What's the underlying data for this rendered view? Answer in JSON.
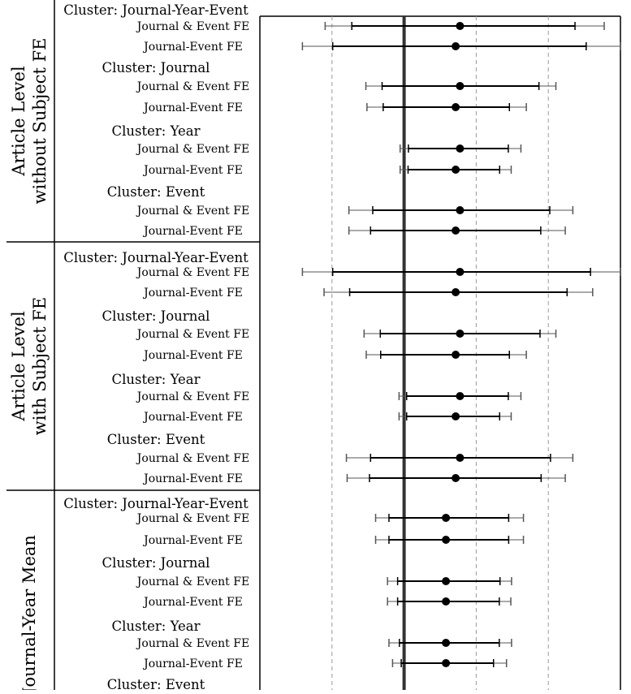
{
  "chart_data": {
    "type": "forest",
    "x_axis": {
      "min": 0.0,
      "max": 1.0,
      "zero_line": 0.4,
      "dashed_gridlines": [
        0.2,
        0.6,
        0.8
      ]
    },
    "ci_levels": [
      "95%",
      "90%"
    ],
    "panels": [
      {
        "group_label_lines": [
          "Article Level",
          "without Subject FE"
        ],
        "clusters": [
          {
            "label": "Cluster: Journal-Year-Event",
            "rows": [
              {
                "label": "Journal & Event FE",
                "estimate": 0.555,
                "ci95": [
                  0.181,
                  0.955
                ],
                "ci90": [
                  0.255,
                  0.874
                ]
              },
              {
                "label": "Journal-Event FE",
                "estimate": 0.543,
                "ci95": [
                  0.118,
                  1.0
                ],
                "ci90": [
                  0.202,
                  0.905
                ]
              }
            ]
          },
          {
            "label": "Cluster: Journal",
            "rows": [
              {
                "label": "Journal & Event FE",
                "estimate": 0.555,
                "ci95": [
                  0.294,
                  0.821
                ],
                "ci90": [
                  0.339,
                  0.774
                ]
              },
              {
                "label": "Journal-Event FE",
                "estimate": 0.543,
                "ci95": [
                  0.297,
                  0.739
                ],
                "ci90": [
                  0.342,
                  0.692
                ]
              }
            ]
          },
          {
            "label": "Cluster: Year",
            "rows": [
              {
                "label": "Journal & Event FE",
                "estimate": 0.555,
                "ci95": [
                  0.389,
                  0.724
                ],
                "ci90": [
                  0.412,
                  0.689
                ]
              },
              {
                "label": "Journal-Event FE",
                "estimate": 0.543,
                "ci95": [
                  0.389,
                  0.697
                ],
                "ci90": [
                  0.411,
                  0.665
                ]
              }
            ]
          },
          {
            "label": "Cluster: Event",
            "rows": [
              {
                "label": "Journal & Event FE",
                "estimate": 0.555,
                "ci95": [
                  0.247,
                  0.868
                ],
                "ci90": [
                  0.313,
                  0.804
                ]
              },
              {
                "label": "Journal-Event FE",
                "estimate": 0.543,
                "ci95": [
                  0.247,
                  0.847
                ],
                "ci90": [
                  0.307,
                  0.779
                ]
              }
            ]
          }
        ]
      },
      {
        "group_label_lines": [
          "Article Level",
          "with Subject FE"
        ],
        "clusters": [
          {
            "label": "Cluster: Journal-Year-Event",
            "rows": [
              {
                "label": "Journal & Event FE",
                "estimate": 0.555,
                "ci95": [
                  0.118,
                  1.0
                ],
                "ci90": [
                  0.202,
                  0.917
                ]
              },
              {
                "label": "Journal-Event FE",
                "estimate": 0.543,
                "ci95": [
                  0.178,
                  0.923
                ],
                "ci90": [
                  0.249,
                  0.852
                ]
              }
            ]
          },
          {
            "label": "Cluster: Journal",
            "rows": [
              {
                "label": "Journal & Event FE",
                "estimate": 0.555,
                "ci95": [
                  0.289,
                  0.821
                ],
                "ci90": [
                  0.334,
                  0.777
                ]
              },
              {
                "label": "Journal-Event FE",
                "estimate": 0.543,
                "ci95": [
                  0.295,
                  0.739
                ],
                "ci90": [
                  0.335,
                  0.692
                ]
              }
            ]
          },
          {
            "label": "Cluster: Year",
            "rows": [
              {
                "label": "Journal & Event FE",
                "estimate": 0.555,
                "ci95": [
                  0.386,
                  0.724
                ],
                "ci90": [
                  0.407,
                  0.689
                ]
              },
              {
                "label": "Journal-Event FE",
                "estimate": 0.543,
                "ci95": [
                  0.386,
                  0.697
                ],
                "ci90": [
                  0.407,
                  0.665
                ]
              }
            ]
          },
          {
            "label": "Cluster: Event",
            "rows": [
              {
                "label": "Journal & Event FE",
                "estimate": 0.555,
                "ci95": [
                  0.24,
                  0.868
                ],
                "ci90": [
                  0.307,
                  0.806
                ]
              },
              {
                "label": "Journal-Event FE",
                "estimate": 0.543,
                "ci95": [
                  0.242,
                  0.847
                ],
                "ci90": [
                  0.304,
                  0.78
                ]
              }
            ]
          }
        ]
      },
      {
        "group_label_lines": [
          "Journal-Year Mean"
        ],
        "clusters": [
          {
            "label": "Cluster: Journal-Year-Event",
            "rows": [
              {
                "label": "Journal & Event FE",
                "estimate": 0.516,
                "ci95": [
                  0.321,
                  0.731
                ],
                "ci90": [
                  0.358,
                  0.69
                ]
              },
              {
                "label": "Journal-Event FE",
                "estimate": 0.516,
                "ci95": [
                  0.321,
                  0.731
                ],
                "ci90": [
                  0.358,
                  0.69
                ]
              }
            ]
          },
          {
            "label": "Cluster: Journal",
            "rows": [
              {
                "label": "Journal & Event FE",
                "estimate": 0.516,
                "ci95": [
                  0.354,
                  0.698
                ],
                "ci90": [
                  0.382,
                  0.666
                ]
              },
              {
                "label": "Journal-Event FE",
                "estimate": 0.516,
                "ci95": [
                  0.354,
                  0.696
                ],
                "ci90": [
                  0.382,
                  0.664
                ]
              }
            ]
          },
          {
            "label": "Cluster: Year",
            "rows": [
              {
                "label": "Journal & Event FE",
                "estimate": 0.516,
                "ci95": [
                  0.358,
                  0.698
                ],
                "ci90": [
                  0.387,
                  0.664
                ]
              },
              {
                "label": "Journal-Event FE",
                "estimate": 0.516,
                "ci95": [
                  0.368,
                  0.684
                ],
                "ci90": [
                  0.392,
                  0.648
                ]
              }
            ]
          },
          {
            "label": "Cluster: Event",
            "rows": []
          }
        ]
      }
    ]
  }
}
